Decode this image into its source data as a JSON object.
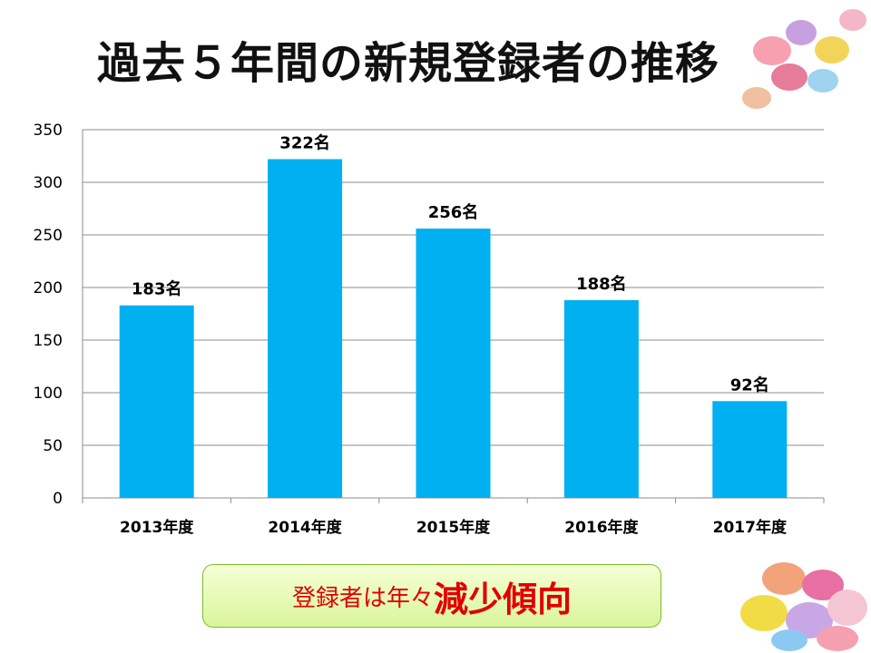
{
  "title": "過去５年間の新規登録者の推移",
  "note": {
    "prefix": "登録者は年々",
    "emphasis": "減少傾向"
  },
  "colors": {
    "bar": "#00b0f0",
    "note_text": "#e00000",
    "note_bg": "#d9f59b"
  },
  "chart_data": {
    "type": "bar",
    "title": "",
    "xlabel": "",
    "ylabel": "",
    "categories": [
      "2013年度",
      "2014年度",
      "2015年度",
      "2016年度",
      "2017年度"
    ],
    "values": [
      183,
      322,
      256,
      188,
      92
    ],
    "data_labels": [
      "183名",
      "322名",
      "256名",
      "188名",
      "92名"
    ],
    "ylim": [
      0,
      350
    ],
    "yticks": [
      0,
      50,
      100,
      150,
      200,
      250,
      300,
      350
    ],
    "grid": true,
    "legend": "none"
  }
}
